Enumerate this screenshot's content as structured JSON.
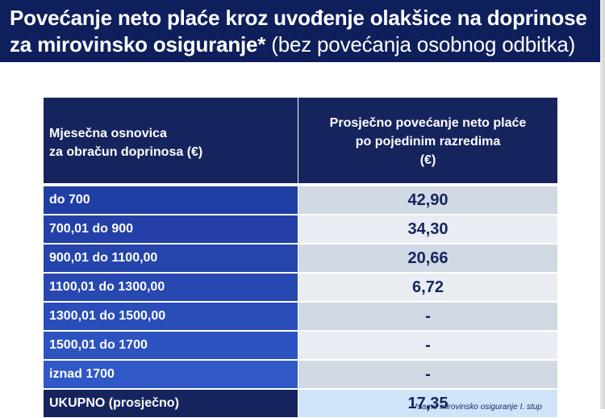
{
  "header": {
    "line1": "Povećanje neto plaće kroz uvođenje olakšice na doprinose",
    "line2_bold": "za mirovinsko osiguranje*",
    "line2_normal": "(bez povećanja osobnog odbitka)"
  },
  "table": {
    "col1_header": [
      "Mjesečna osnovica",
      "za obračun doprinosa (€)"
    ],
    "col2_header": [
      "Prosječno povećanje neto plaće",
      "po pojedinim razredima",
      "(€)"
    ],
    "rows": [
      {
        "range": "do 700",
        "value": "42,90"
      },
      {
        "range": "700,01 do 900",
        "value": "34,30"
      },
      {
        "range": "900,01 do 1100,00",
        "value": "20,66"
      },
      {
        "range": "1100,01 do 1300,00",
        "value": "6,72"
      },
      {
        "range": "1300,01 do 1500,00",
        "value": "-"
      },
      {
        "range": "1500,01 do 1700",
        "value": "-"
      },
      {
        "range": "iznad 1700",
        "value": "-"
      }
    ],
    "total": {
      "label": "UKUPNO (prosječno)",
      "value": "17,35"
    }
  },
  "footnote": "*samo mirovinsko osiguranje I. stup",
  "colors": {
    "header_bg": "#0f1f5c",
    "table_header_bg": "#16245e",
    "range_cell_blue": "#2544ac",
    "value_cell_light": "#d0d9e4",
    "total_value_bg": "#cfe4f8"
  }
}
